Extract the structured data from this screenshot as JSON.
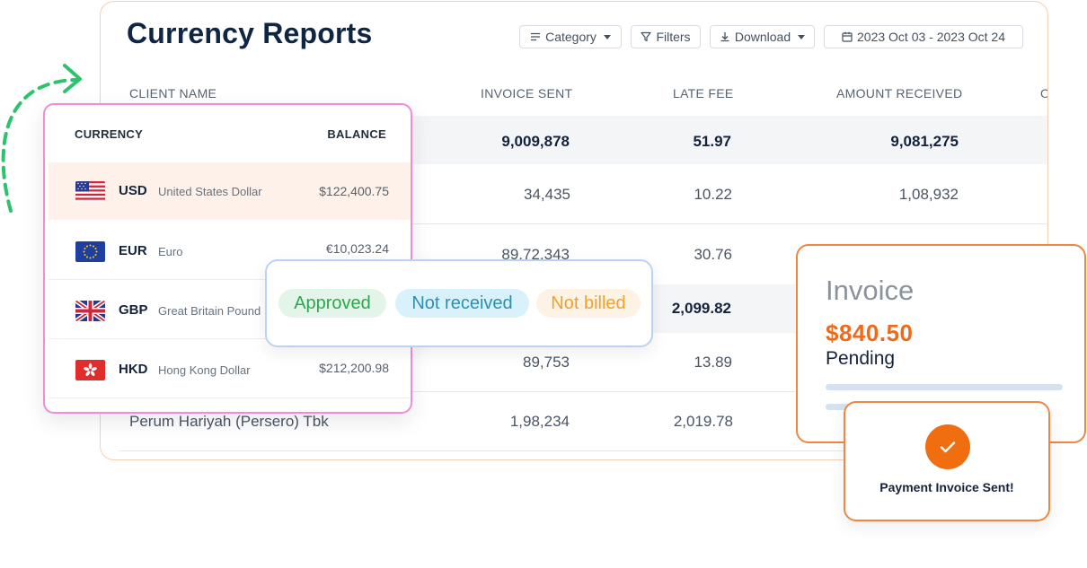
{
  "report": {
    "title": "Currency Reports",
    "toolbar": {
      "category_label": "Category",
      "filters_label": "Filters",
      "download_label": "Download",
      "date_range": "2023 Oct 03 - 2023 Oct 24"
    },
    "columns": [
      "CLIENT NAME",
      "INVOICE SENT",
      "LATE FEE",
      "AMOUNT RECEIVED",
      "O"
    ],
    "rows": [
      {
        "client": "",
        "invoice_sent": "9,009,878",
        "late_fee": "51.97",
        "amount_received": "9,081,275"
      },
      {
        "client": "",
        "invoice_sent": "34,435",
        "late_fee": "10.22",
        "amount_received": "1,08,932"
      },
      {
        "client": "",
        "invoice_sent": "89,72,343",
        "late_fee": "30.76",
        "amount_received": ""
      },
      {
        "client": "",
        "invoice_sent": "",
        "late_fee": "2,099.82",
        "amount_received": ""
      },
      {
        "client": "",
        "invoice_sent": "89,753",
        "late_fee": "13.89",
        "amount_received": ""
      },
      {
        "client": "Perum Hariyah (Persero) Tbk",
        "invoice_sent": "1,98,234",
        "late_fee": "2,019.78",
        "amount_received": ""
      }
    ]
  },
  "currency": {
    "header_currency": "CURRENCY",
    "header_balance": "BALANCE",
    "items": [
      {
        "code": "USD",
        "name": "United States Dollar",
        "balance": "$122,400.75",
        "flag": "us-flag"
      },
      {
        "code": "EUR",
        "name": "Euro",
        "balance": "€10,023.24",
        "flag": "eu-flag"
      },
      {
        "code": "GBP",
        "name": "Great Britain Pound",
        "balance": "",
        "flag": "gb-flag"
      },
      {
        "code": "HKD",
        "name": "Hong Kong Dollar",
        "balance": "$212,200.98",
        "flag": "hk-flag"
      }
    ]
  },
  "statuses": {
    "approved": "Approved",
    "not_received": "Not received",
    "not_billed": "Not billed"
  },
  "invoice": {
    "title": "Invoice",
    "amount": "$840.50",
    "status": "Pending"
  },
  "payment": {
    "message": "Payment Invoice Sent!"
  },
  "colors": {
    "accent_orange": "#ef6a1a",
    "title_navy": "#0f2544",
    "approved_green": "#2ea64e",
    "not_received_blue": "#2e8fb2",
    "not_billed_amber": "#efa02f",
    "currency_border_pink": "#f28ad6",
    "arrow_green": "#2cc36b"
  }
}
